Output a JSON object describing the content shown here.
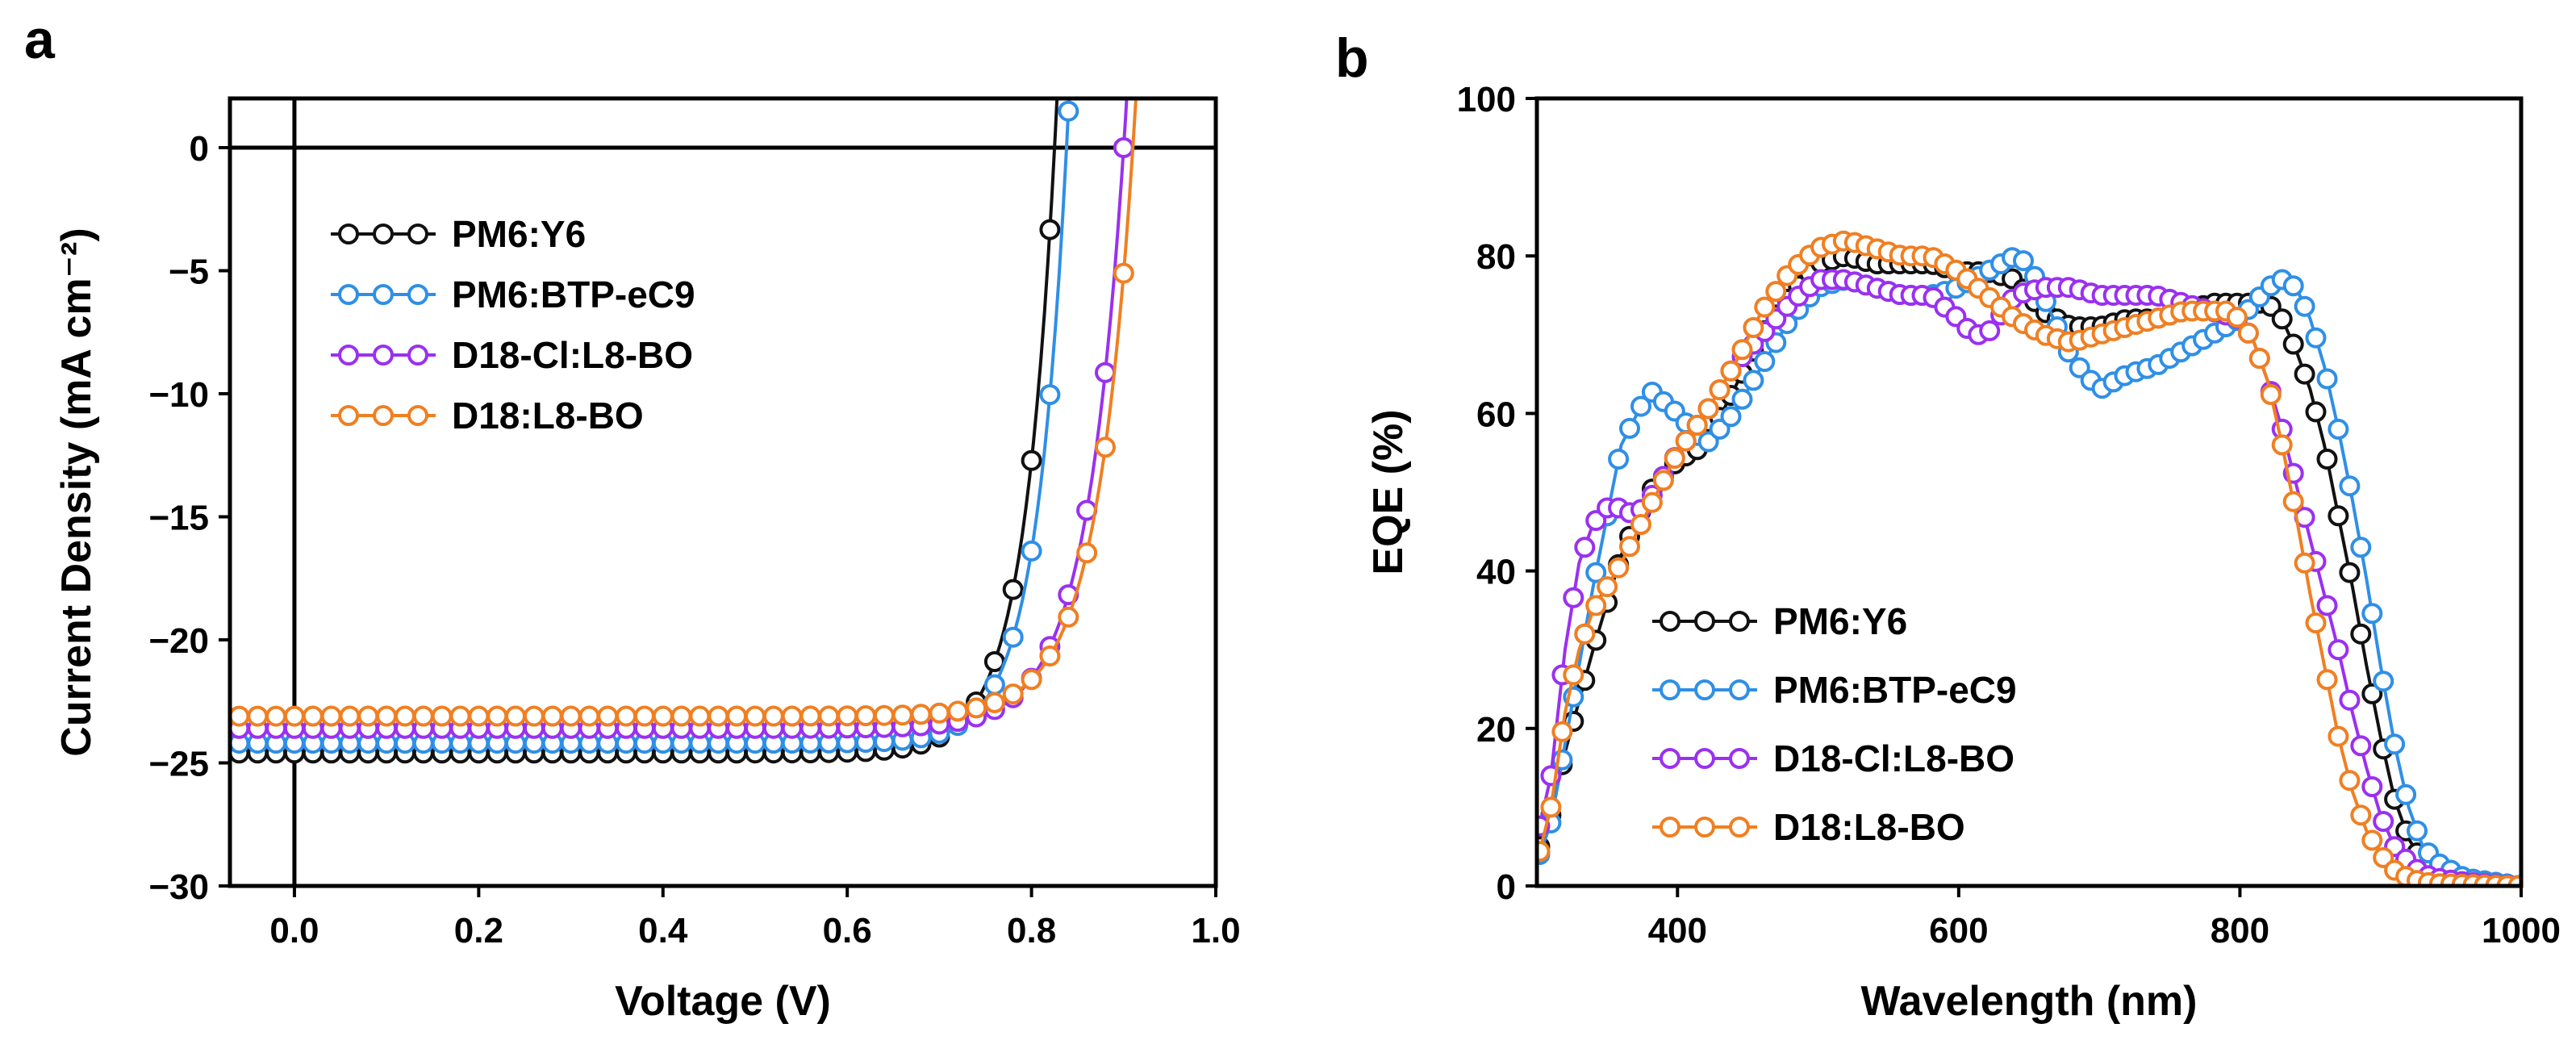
{
  "panels": {
    "a": {
      "letter": "a"
    },
    "b": {
      "letter": "b"
    }
  },
  "colors": {
    "PM6:Y6": "#111111",
    "PM6:BTP-eC9": "#2f8fe6",
    "D18-Cl:L8-BO": "#9b30f0",
    "D18:L8-BO": "#f07f22"
  },
  "chart_data": [
    {
      "id": "jv",
      "type": "line",
      "title": "",
      "xlabel": "Voltage (V)",
      "ylabel": "Current Density (mA cm⁻²)",
      "xlim": [
        -0.07,
        1.0
      ],
      "ylim": [
        -30,
        2
      ],
      "xticks": [
        0.0,
        0.2,
        0.4,
        0.6,
        0.8,
        1.0
      ],
      "xtick_labels": [
        "0.0",
        "0.2",
        "0.4",
        "0.6",
        "0.8",
        "1.0"
      ],
      "yticks": [
        0,
        -5,
        -10,
        -15,
        -20,
        -25,
        -30
      ],
      "ytick_labels": [
        "0",
        "−5",
        "−10",
        "−15",
        "−20",
        "−25",
        "−30"
      ],
      "reference_lines": {
        "x": 0,
        "y": 0
      },
      "legend_position": "upper-left",
      "series": [
        {
          "name": "PM6:Y6",
          "jsc": -24.6,
          "voc": 0.825,
          "n": 1.33
        },
        {
          "name": "PM6:BTP-eC9",
          "jsc": -24.2,
          "voc": 0.838,
          "n": 1.3
        },
        {
          "name": "D18-Cl:L8-BO",
          "jsc": -23.6,
          "voc": 0.9,
          "n": 1.58
        },
        {
          "name": "D18:L8-BO",
          "jsc": -23.1,
          "voc": 0.91,
          "n": 1.55
        }
      ]
    },
    {
      "id": "eqe",
      "type": "line",
      "title": "",
      "xlabel": "Wavelength (nm)",
      "ylabel": "EQE (%)",
      "xlim": [
        300,
        1000
      ],
      "ylim": [
        0,
        100
      ],
      "xticks": [
        400,
        600,
        800,
        1000
      ],
      "xtick_labels": [
        "400",
        "600",
        "800",
        "1000"
      ],
      "yticks": [
        0,
        20,
        40,
        60,
        80,
        100
      ],
      "ytick_labels": [
        "0",
        "20",
        "40",
        "60",
        "80",
        "100"
      ],
      "legend_position": "lower-left",
      "series": [
        {
          "name": "PM6:Y6",
          "x": [
            300,
            310,
            320,
            340,
            360,
            380,
            400,
            420,
            440,
            460,
            480,
            500,
            520,
            540,
            560,
            580,
            600,
            620,
            640,
            660,
            680,
            700,
            720,
            740,
            760,
            780,
            800,
            820,
            830,
            840,
            850,
            860,
            870,
            880,
            890,
            900,
            910,
            920,
            930,
            940,
            960,
            980,
            1000
          ],
          "y": [
            4,
            9,
            17,
            30,
            42,
            50,
            54,
            56,
            63,
            70,
            75,
            79,
            80,
            79,
            79,
            79,
            78,
            78,
            77,
            73,
            71,
            71,
            72,
            72,
            73,
            74,
            74,
            74,
            72,
            68,
            63,
            56,
            47,
            38,
            28,
            19,
            11,
            6,
            3,
            2,
            1,
            0.5,
            0
          ]
        },
        {
          "name": "PM6:BTP-eC9",
          "x": [
            300,
            310,
            320,
            340,
            360,
            380,
            400,
            420,
            440,
            460,
            480,
            500,
            520,
            540,
            560,
            580,
            600,
            620,
            640,
            650,
            660,
            680,
            700,
            720,
            740,
            760,
            780,
            800,
            820,
            830,
            840,
            850,
            860,
            870,
            880,
            890,
            900,
            910,
            920,
            930,
            940,
            960,
            980,
            1000
          ],
          "y": [
            3,
            8,
            18,
            38,
            56,
            63,
            60,
            56,
            60,
            66,
            72,
            76,
            77,
            76,
            75,
            75,
            76,
            78,
            80,
            79,
            75,
            67,
            63,
            65,
            66,
            68,
            70,
            72,
            76,
            77,
            76,
            72,
            66,
            58,
            49,
            39,
            28,
            18,
            10,
            5,
            3,
            1,
            0.5,
            0
          ]
        },
        {
          "name": "D18-Cl:L8-BO",
          "x": [
            300,
            310,
            320,
            330,
            340,
            350,
            360,
            370,
            380,
            400,
            420,
            440,
            460,
            480,
            500,
            520,
            540,
            560,
            580,
            600,
            610,
            620,
            640,
            660,
            680,
            700,
            720,
            740,
            760,
            780,
            800,
            810,
            820,
            830,
            840,
            850,
            860,
            870,
            880,
            890,
            900,
            910,
            920,
            930,
            940,
            960,
            980,
            1000
          ],
          "y": [
            6,
            14,
            30,
            41,
            46,
            48,
            48,
            47,
            49,
            55,
            60,
            66,
            70,
            74,
            77,
            77,
            76,
            75,
            75,
            72,
            70,
            70,
            75,
            76,
            76,
            75,
            75,
            75,
            74,
            73,
            72,
            69,
            64,
            58,
            51,
            44,
            37,
            30,
            22,
            15,
            9,
            5,
            3,
            1.5,
            1,
            0.5,
            0.2,
            0
          ]
        },
        {
          "name": "D18:L8-BO",
          "x": [
            300,
            310,
            320,
            330,
            340,
            360,
            380,
            400,
            420,
            440,
            460,
            480,
            500,
            520,
            540,
            560,
            580,
            600,
            620,
            640,
            660,
            680,
            700,
            720,
            740,
            760,
            780,
            790,
            800,
            810,
            820,
            830,
            840,
            850,
            860,
            870,
            880,
            890,
            900,
            910,
            920,
            930,
            940,
            960,
            980,
            1000
          ],
          "y": [
            3,
            10,
            22,
            30,
            35,
            41,
            48,
            55,
            60,
            66,
            73,
            78,
            81,
            82,
            81,
            80,
            80,
            78,
            75,
            72,
            70,
            69,
            70,
            71,
            72,
            73,
            73,
            73,
            72,
            69,
            64,
            56,
            47,
            37,
            28,
            19,
            12,
            7,
            4,
            2,
            1,
            0.5,
            0.3,
            0.2,
            0.1,
            0
          ]
        }
      ]
    }
  ]
}
